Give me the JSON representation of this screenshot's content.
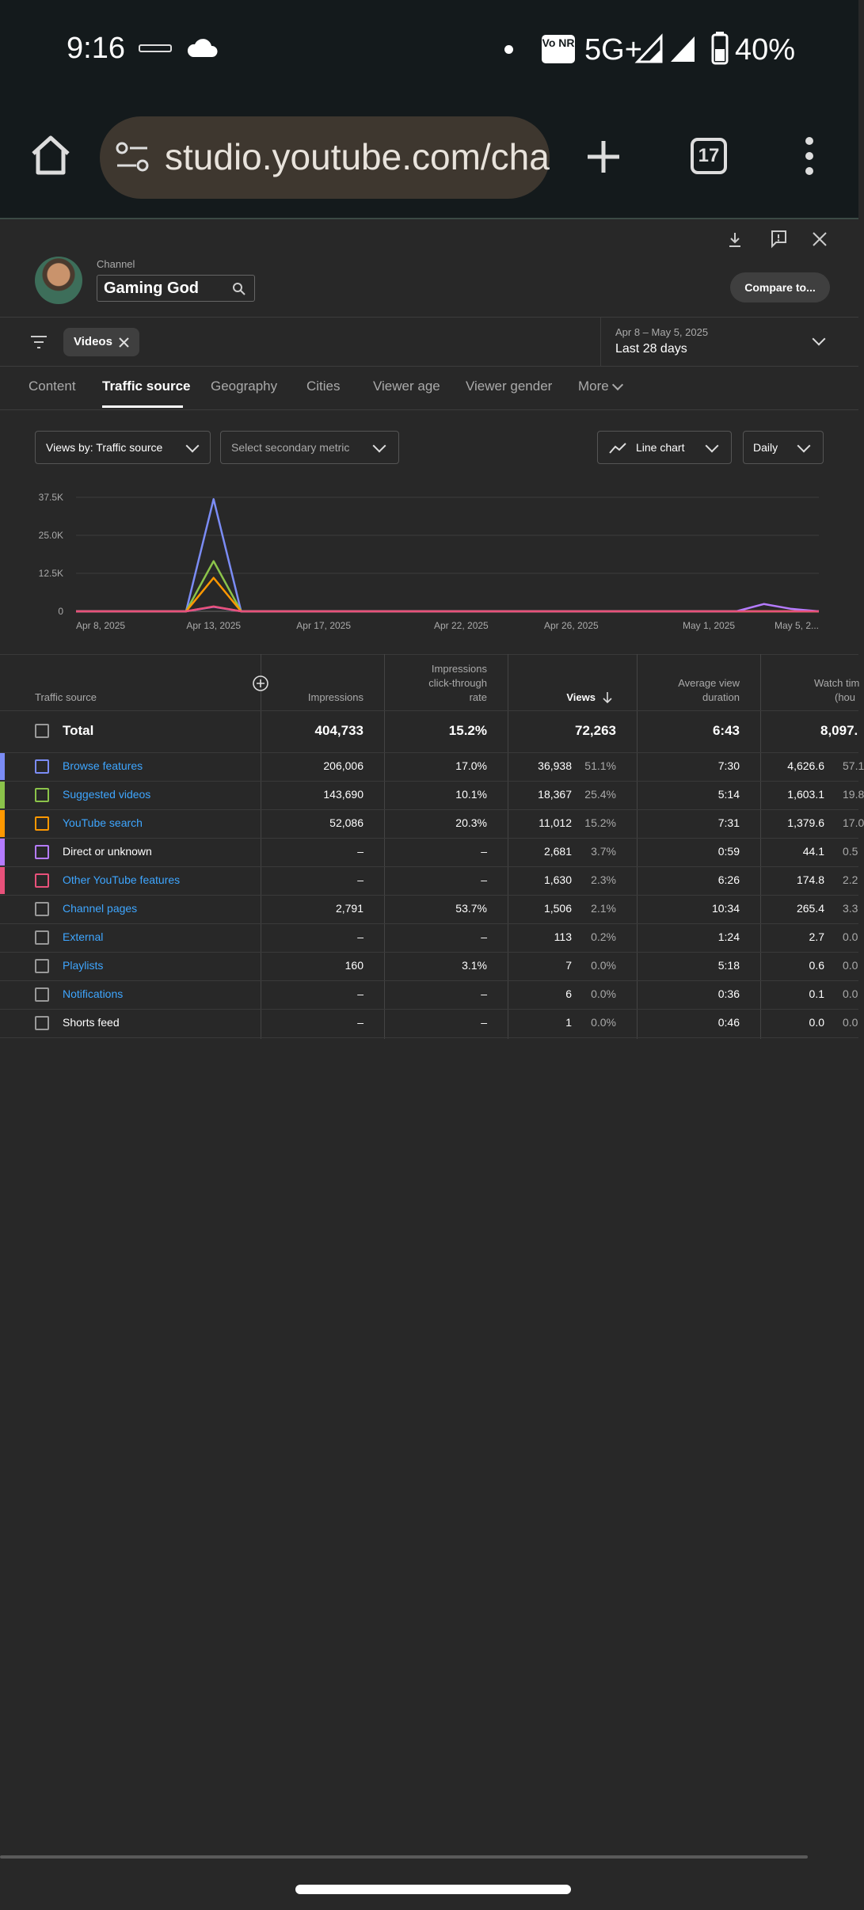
{
  "status_bar": {
    "time": "9:16",
    "signal_label": "5G+",
    "volte_label": "Vo NR",
    "battery": "40%"
  },
  "browser": {
    "url": "studio.youtube.com/cha",
    "tab_count": "17"
  },
  "header": {
    "channel_caption": "Channel",
    "channel_name": "Gaming God",
    "compare_label": "Compare to..."
  },
  "filters": {
    "chip_label": "Videos",
    "date_range": "Apr 8 – May 5, 2025",
    "date_preset": "Last 28 days"
  },
  "tabs": [
    "Content",
    "Traffic source",
    "Geography",
    "Cities",
    "Viewer age",
    "Viewer gender",
    "More"
  ],
  "active_tab": "Traffic source",
  "controls": {
    "primary_metric": "Views by: Traffic source",
    "secondary_metric": "Select secondary metric",
    "chart_type": "Line chart",
    "interval": "Daily"
  },
  "chart_data": {
    "type": "line",
    "y_ticks": [
      "37.5K",
      "25.0K",
      "12.5K",
      "0"
    ],
    "ylim": [
      0,
      37500
    ],
    "x_tick_labels": [
      "Apr 8, 2025",
      "Apr 13, 2025",
      "Apr 17, 2025",
      "Apr 22, 2025",
      "Apr 26, 2025",
      "May 1, 2025",
      "May 5, 2..."
    ],
    "x": [
      "Apr 8",
      "Apr 9",
      "Apr 10",
      "Apr 11",
      "Apr 12",
      "Apr 13",
      "Apr 14",
      "Apr 15",
      "Apr 16",
      "Apr 17",
      "Apr 18",
      "Apr 19",
      "Apr 20",
      "Apr 21",
      "Apr 22",
      "Apr 23",
      "Apr 24",
      "Apr 25",
      "Apr 26",
      "Apr 27",
      "Apr 28",
      "Apr 29",
      "Apr 30",
      "May 1",
      "May 2",
      "May 3",
      "May 4",
      "May 5"
    ],
    "series": [
      {
        "name": "Browse features",
        "color": "#7b8cf5",
        "values": [
          0,
          0,
          0,
          0,
          0,
          36900,
          0,
          0,
          0,
          0,
          0,
          0,
          0,
          0,
          0,
          0,
          0,
          0,
          0,
          0,
          0,
          0,
          0,
          0,
          0,
          0,
          0,
          0
        ]
      },
      {
        "name": "Suggested videos",
        "color": "#8bc34a",
        "values": [
          0,
          0,
          0,
          0,
          0,
          16500,
          0,
          0,
          0,
          0,
          0,
          0,
          0,
          0,
          0,
          0,
          0,
          0,
          0,
          0,
          0,
          0,
          0,
          0,
          0,
          0,
          0,
          0
        ]
      },
      {
        "name": "YouTube search",
        "color": "#ff9800",
        "values": [
          0,
          0,
          0,
          0,
          0,
          11000,
          0,
          0,
          0,
          0,
          0,
          0,
          0,
          0,
          0,
          0,
          0,
          0,
          0,
          0,
          0,
          0,
          0,
          0,
          0,
          0,
          0,
          0
        ]
      },
      {
        "name": "Direct or unknown",
        "color": "#b57bff",
        "values": [
          0,
          0,
          0,
          0,
          0,
          1500,
          0,
          0,
          0,
          0,
          0,
          0,
          0,
          0,
          0,
          0,
          0,
          0,
          0,
          0,
          0,
          0,
          0,
          0,
          0,
          2400,
          800,
          0
        ]
      },
      {
        "name": "Other YouTube features",
        "color": "#e8517a",
        "values": [
          0,
          0,
          0,
          0,
          0,
          1600,
          0,
          0,
          0,
          0,
          0,
          0,
          0,
          0,
          0,
          0,
          0,
          0,
          0,
          0,
          0,
          0,
          0,
          0,
          0,
          0,
          0,
          0
        ]
      }
    ]
  },
  "table": {
    "headers": {
      "source": "Traffic source",
      "impressions": "Impressions",
      "ctr_1": "Impressions",
      "ctr_2": "click-through",
      "ctr_3": "rate",
      "views": "Views",
      "avd_1": "Average view",
      "avd_2": "duration",
      "watch_1": "Watch tim",
      "watch_2": "(hou"
    },
    "total": {
      "label": "Total",
      "impressions": "404,733",
      "ctr": "15.2%",
      "views": "72,263",
      "avd": "6:43",
      "watch": "8,097."
    },
    "rows": [
      {
        "name": "Browse features",
        "link": true,
        "color": "#7b8cf5",
        "impressions": "206,006",
        "ctr": "17.0%",
        "views": "36,938",
        "views_pct": "51.1%",
        "avd": "7:30",
        "watch": "4,626.6",
        "watch_pct": "57.1"
      },
      {
        "name": "Suggested videos",
        "link": true,
        "color": "#8bc34a",
        "impressions": "143,690",
        "ctr": "10.1%",
        "views": "18,367",
        "views_pct": "25.4%",
        "avd": "5:14",
        "watch": "1,603.1",
        "watch_pct": "19.8"
      },
      {
        "name": "YouTube search",
        "link": true,
        "color": "#ff9800",
        "impressions": "52,086",
        "ctr": "20.3%",
        "views": "11,012",
        "views_pct": "15.2%",
        "avd": "7:31",
        "watch": "1,379.6",
        "watch_pct": "17.0"
      },
      {
        "name": "Direct or unknown",
        "link": false,
        "color": "#b57bff",
        "impressions": "–",
        "ctr": "–",
        "views": "2,681",
        "views_pct": "3.7%",
        "avd": "0:59",
        "watch": "44.1",
        "watch_pct": "0.5"
      },
      {
        "name": "Other YouTube features",
        "link": true,
        "color": "#e8517a",
        "impressions": "–",
        "ctr": "–",
        "views": "1,630",
        "views_pct": "2.3%",
        "avd": "6:26",
        "watch": "174.8",
        "watch_pct": "2.2"
      },
      {
        "name": "Channel pages",
        "link": true,
        "color": "",
        "impressions": "2,791",
        "ctr": "53.7%",
        "views": "1,506",
        "views_pct": "2.1%",
        "avd": "10:34",
        "watch": "265.4",
        "watch_pct": "3.3"
      },
      {
        "name": "External",
        "link": true,
        "color": "",
        "impressions": "–",
        "ctr": "–",
        "views": "113",
        "views_pct": "0.2%",
        "avd": "1:24",
        "watch": "2.7",
        "watch_pct": "0.0"
      },
      {
        "name": "Playlists",
        "link": true,
        "color": "",
        "impressions": "160",
        "ctr": "3.1%",
        "views": "7",
        "views_pct": "0.0%",
        "avd": "5:18",
        "watch": "0.6",
        "watch_pct": "0.0"
      },
      {
        "name": "Notifications",
        "link": true,
        "color": "",
        "impressions": "–",
        "ctr": "–",
        "views": "6",
        "views_pct": "0.0%",
        "avd": "0:36",
        "watch": "0.1",
        "watch_pct": "0.0"
      },
      {
        "name": "Shorts feed",
        "link": false,
        "color": "",
        "impressions": "–",
        "ctr": "–",
        "views": "1",
        "views_pct": "0.0%",
        "avd": "0:46",
        "watch": "0.0",
        "watch_pct": "0.0"
      }
    ]
  }
}
